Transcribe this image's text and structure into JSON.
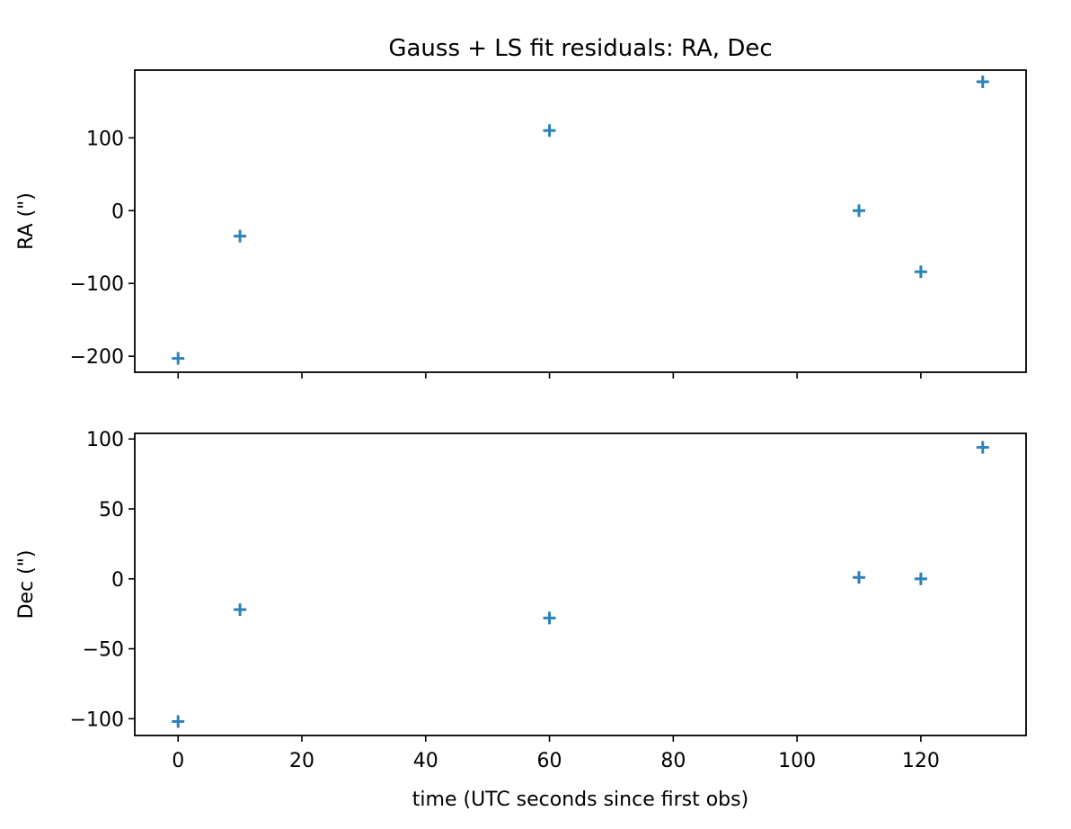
{
  "chart_data": {
    "type": "scatter",
    "title": "Gauss + LS fit residuals: RA, Dec",
    "xlabel": "time (UTC seconds since first obs)",
    "xlim": [
      -7,
      137
    ],
    "x_ticks": [
      0,
      20,
      40,
      60,
      80,
      100,
      120
    ],
    "marker": "+",
    "color": "#2b83ba",
    "panels": [
      {
        "ylabel": "RA (\")",
        "ylim": [
          -222,
          193
        ],
        "y_ticks": [
          100,
          0,
          -100,
          -200
        ],
        "y_tick_labels": [
          "100",
          "0",
          "−100",
          "−200"
        ],
        "x": [
          0,
          10,
          60,
          110,
          120,
          130
        ],
        "y": [
          -203,
          -35,
          110,
          0,
          -84,
          177
        ]
      },
      {
        "ylabel": "Dec (\")",
        "ylim": [
          -112,
          104
        ],
        "y_ticks": [
          100,
          50,
          0,
          -50,
          -100
        ],
        "y_tick_labels": [
          "100",
          "50",
          "0",
          "−50",
          "−100"
        ],
        "x": [
          0,
          10,
          60,
          110,
          120,
          130
        ],
        "y": [
          -102,
          -22,
          -28,
          1,
          0,
          94
        ]
      }
    ]
  }
}
